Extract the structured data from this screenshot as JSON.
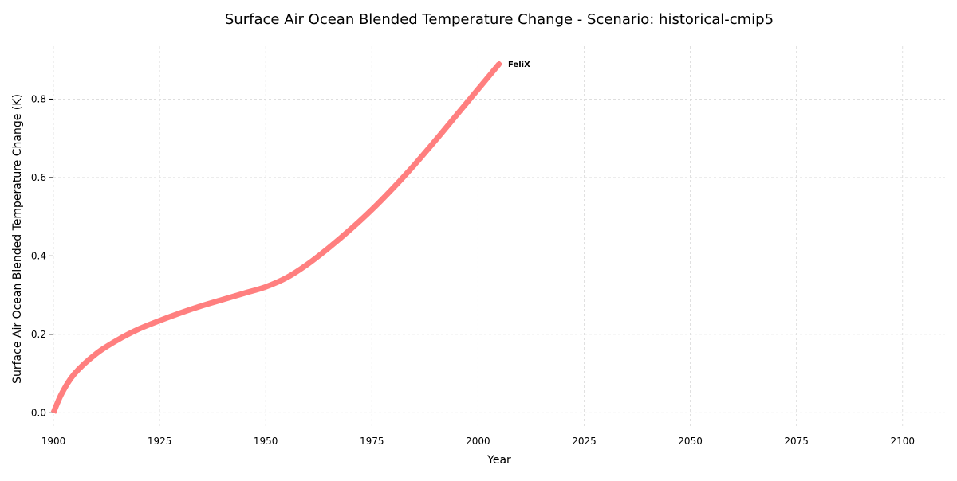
{
  "chart_data": {
    "type": "line",
    "title": "Surface Air Ocean Blended Temperature Change - Scenario: historical-cmip5",
    "xlabel": "Year",
    "ylabel": "Surface Air Ocean Blended Temperature Change (K)",
    "xlim": [
      1900,
      2110
    ],
    "ylim": [
      -0.04,
      0.935
    ],
    "x_ticks": [
      1900,
      1925,
      1950,
      1975,
      2000,
      2025,
      2050,
      2075,
      2100
    ],
    "y_ticks": [
      0.0,
      0.2,
      0.4,
      0.6,
      0.8
    ],
    "x_tick_labels": [
      "1900",
      "1925",
      "1950",
      "1975",
      "2000",
      "2025",
      "2050",
      "2075",
      "2100"
    ],
    "y_tick_labels": [
      "0.0",
      "0.2",
      "0.4",
      "0.6",
      "0.8"
    ],
    "grid": true,
    "series": [
      {
        "name": "FeliX",
        "color": "#ff7f7f",
        "x": [
          1900,
          1902,
          1905,
          1910,
          1915,
          1920,
          1925,
          1930,
          1935,
          1940,
          1945,
          1950,
          1955,
          1960,
          1965,
          1970,
          1975,
          1980,
          1985,
          1990,
          1995,
          2000,
          2005
        ],
        "y": [
          0.0,
          0.05,
          0.1,
          0.15,
          0.185,
          0.213,
          0.235,
          0.255,
          0.273,
          0.289,
          0.305,
          0.321,
          0.345,
          0.38,
          0.422,
          0.468,
          0.518,
          0.573,
          0.632,
          0.695,
          0.76,
          0.825,
          0.89
        ]
      }
    ]
  }
}
